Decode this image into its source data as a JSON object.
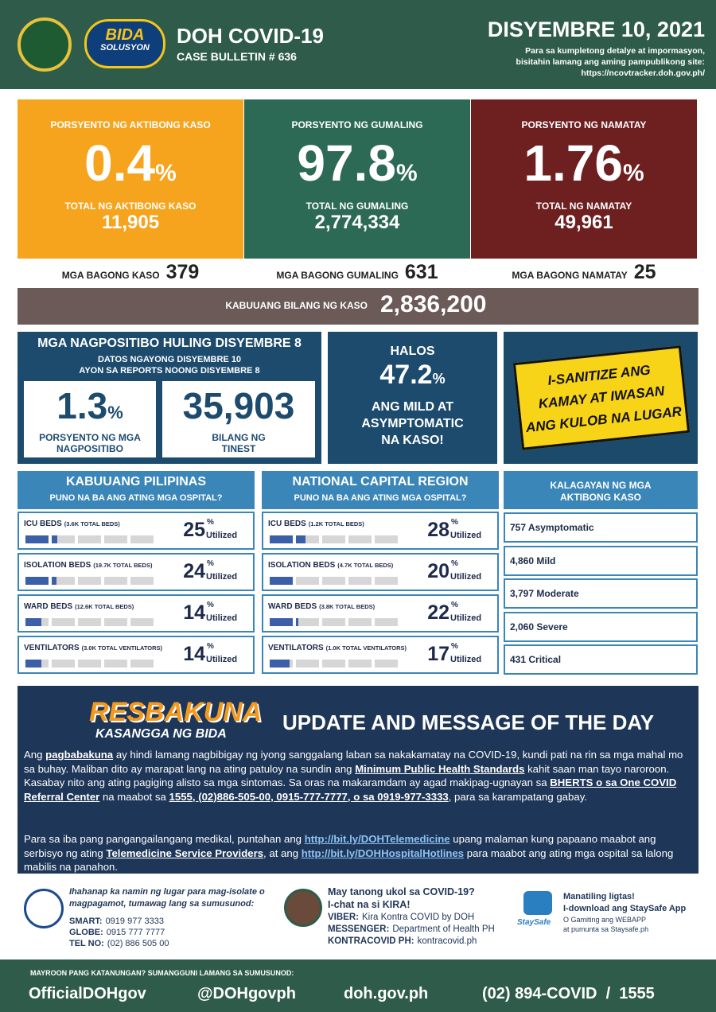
{
  "header": {
    "badge": [
      "BIDA",
      "SOLUSYON"
    ],
    "title": "DOH COVID-19",
    "bulletin": "CASE BULLETIN # 636",
    "date": "DISYEMBRE 10, 2021",
    "note": [
      "Para sa kumpletong detalye at impormasyon,",
      "bisitahin lamang ang aming pampublikong site:",
      "https://ncovtracker.doh.gov.ph/"
    ]
  },
  "summary": [
    {
      "color": "#f6a41d",
      "label": "PORSYENTO NG AKTIBONG KASO",
      "value": "0.4",
      "unit": "%",
      "total_label": "TOTAL NG AKTIBONG KASO",
      "total": "11,905",
      "new_label": "MGA BAGONG KASO",
      "new": "379"
    },
    {
      "color": "#2d6a55",
      "label": "PORSYENTO NG GUMALING",
      "value": "97.8",
      "unit": "%",
      "total_label": "TOTAL NG GUMALING",
      "total": "2,774,334",
      "new_label": "MGA BAGONG GUMALING",
      "new": "631"
    },
    {
      "color": "#6e1f1f",
      "label": "PORSYENTO NG NAMATAY",
      "value": "1.76",
      "unit": "%",
      "total_label": "TOTAL NG NAMATAY",
      "total": "49,961",
      "new_label": "MGA BAGONG NAMATAY",
      "new": "25"
    }
  ],
  "total": {
    "label": "KABUUANG BILANG NG KASO",
    "value": "2,836,200"
  },
  "positivity": {
    "title": "MGA NAGPOSITIBO HULING DISYEMBRE 8",
    "sub": [
      "DATOS NGAYONG DISYEMBRE 10",
      "AYON SA REPORTS NOONG DISYEMBRE 8"
    ],
    "rate": "1.3",
    "unit": "%",
    "rate_label": [
      "PORSYENTO NG MGA",
      "NAGPOSITIBO"
    ],
    "tested": "35,903",
    "tested_label": [
      "BILANG NG",
      "TINEST"
    ]
  },
  "mild": {
    "intro": "HALOS",
    "value": "47.2",
    "unit": "%",
    "text": [
      "ANG MILD AT",
      "ASYMPTOMATIC",
      "NA KASO!"
    ]
  },
  "sign": [
    "I-SANITIZE ANG",
    "KAMAY AT IWASAN",
    "ANG KULOB NA LUGAR"
  ],
  "hospital_unit": "%",
  "hospital_word": "Utilized",
  "hospitals": [
    {
      "title": "KABUUANG PILIPINAS",
      "subtitle": "PUNO NA BA ANG ATING MGA OSPITAL?",
      "rows": [
        {
          "label": "ICU BEDS",
          "detail": "(3.6K TOTAL BEDS)",
          "value": 25
        },
        {
          "label": "ISOLATION BEDS",
          "detail": "(19.7K TOTAL BEDS)",
          "value": 24
        },
        {
          "label": "WARD BEDS",
          "detail": "(12.6K TOTAL BEDS)",
          "value": 14
        },
        {
          "label": "VENTILATORS",
          "detail": "(3.0K TOTAL VENTILATORS)",
          "value": 14
        }
      ]
    },
    {
      "title": "NATIONAL CAPITAL REGION",
      "subtitle": "PUNO NA BA ANG ATING MGA OSPITAL?",
      "rows": [
        {
          "label": "ICU BEDS",
          "detail": "(1.2K TOTAL BEDS)",
          "value": 28
        },
        {
          "label": "ISOLATION BEDS",
          "detail": "(4.7K TOTAL BEDS)",
          "value": 20
        },
        {
          "label": "WARD BEDS",
          "detail": "(3.8K TOTAL BEDS)",
          "value": 22
        },
        {
          "label": "VENTILATORS",
          "detail": "(1.0K TOTAL VENTILATORS)",
          "value": 17
        }
      ]
    }
  ],
  "status": {
    "title": [
      "KALAGAYAN NG MGA",
      "AKTIBONG KASO"
    ],
    "items": [
      "757 Asymptomatic",
      "4,860 Mild",
      "3,797 Moderate",
      "2,060 Severe",
      "431 Critical"
    ]
  },
  "message": {
    "logo": [
      "RESBAKUNA",
      "KASANGGA NG BIDA"
    ],
    "title": "UPDATE AND MESSAGE OF THE DAY",
    "paragraphs": [
      [
        {
          "text": "Ang "
        },
        {
          "text": "pagbabakuna",
          "underline": true
        },
        {
          "text": " ay hindi lamang nagbibigay ng iyong sanggalang laban sa nakakamatay na COVID-19, kundi pati na rin sa mga mahal mo sa buhay. Maliban dito ay marapat lang na ating patuloy na sundin ang "
        },
        {
          "text": "Minimum Public Health Standards",
          "underline": true
        },
        {
          "text": " kahit saan man tayo naroroon. Kasabay nito ang ating pagiging alisto sa mga sintomas. Sa oras na makaramdam ay agad makipag-ugnayan sa "
        },
        {
          "text": "BHERTS o sa One COVID Referral Center",
          "underline": true
        },
        {
          "text": " na maabot sa "
        },
        {
          "text": "1555, (02)886-505-00, 0915-777-7777, o sa 0919-977-3333",
          "underline": true
        },
        {
          "text": ", para sa karampatang gabay."
        }
      ],
      [
        {
          "text": "Para sa iba pang pangangailangang medikal, puntahan ang "
        },
        {
          "text": "http://bit.ly/DOHTelemedicine",
          "link": true
        },
        {
          "text": " upang malaman kung papaano maabot ang serbisyo ng ating "
        },
        {
          "text": "Telemedicine Service Providers",
          "underline": true
        },
        {
          "text": ", at ang "
        },
        {
          "text": "http://bit.ly/DOHHospitalHotlines",
          "link": true
        },
        {
          "text": " para maabot ang ating mga ospital sa lalong mabilis na panahon."
        }
      ]
    ]
  },
  "contacts": {
    "isolate": {
      "text": [
        "Ihahanap ka namin ng lugar para mag-isolate o",
        "magpagamot, tumawag lang sa sumusunod:"
      ],
      "lines": [
        {
          "label": "SMART:",
          "value": "0919 977 3333"
        },
        {
          "label": "GLOBE:",
          "value": "0915 777 7777"
        },
        {
          "label": "TEL NO:",
          "value": "(02) 886 505 00"
        }
      ]
    },
    "kira": {
      "text": [
        "May tanong ukol sa COVID-19?",
        "I-chat na si KIRA!"
      ],
      "lines": [
        {
          "label": "VIBER:",
          "value": "Kira Kontra COVID by DOH"
        },
        {
          "label": "MESSENGER:",
          "value": "Department of Health PH"
        },
        {
          "label": "KONTRACOVID PH:",
          "value": "kontracovid.ph"
        }
      ]
    },
    "staysafe": {
      "icon": "StaySafe",
      "text": [
        "Manatiling ligtas!",
        "I-download ang StaySafe App"
      ],
      "small": [
        "O Gamiting ang WEBAPP",
        "at pumunta sa Staysafe.ph"
      ]
    }
  },
  "footer": {
    "note": "MAYROON PANG KATANUNGAN? SUMANGGUNI LAMANG SA SUMUSUNOD:",
    "links": [
      "OfficialDOHgov",
      "@DOHgovph",
      "doh.gov.ph",
      "(02) 894-COVID  /  1555"
    ]
  }
}
